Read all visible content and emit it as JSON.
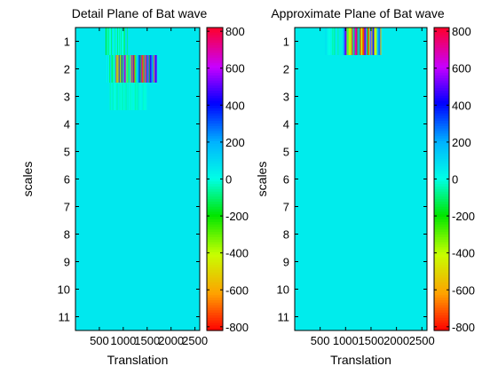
{
  "chart_data": [
    {
      "type": "heatmap",
      "title": "Detail Plane of Bat wave",
      "xlabel": "Translation",
      "ylabel": "scales",
      "xlim": [
        0,
        2600
      ],
      "ylim": [
        0.5,
        11.5
      ],
      "xticks": [
        500,
        1000,
        1500,
        2000,
        2500
      ],
      "xtick_labels": [
        "500",
        "1000",
        "1500",
        "2000",
        "2500"
      ],
      "yticks": [
        1,
        2,
        3,
        4,
        5,
        6,
        7,
        8,
        9,
        10,
        11
      ],
      "ytick_labels": [
        "1",
        "2",
        "3",
        "4",
        "5",
        "6",
        "7",
        "8",
        "9",
        "10",
        "11"
      ],
      "baseline_value": 60,
      "regions": [
        {
          "scale": 1,
          "x_start": 630,
          "x_end": 650,
          "amplitude": 300,
          "seed": 3
        },
        {
          "scale": 1,
          "x_start": 650,
          "x_end": 1100,
          "amplitude": 100,
          "seed": 7
        },
        {
          "scale": 2,
          "x_start": 830,
          "x_end": 1700,
          "amplitude": 820,
          "seed": 11
        },
        {
          "scale": 2,
          "x_start": 650,
          "x_end": 830,
          "amplitude": 120,
          "seed": 13
        },
        {
          "scale": 3,
          "x_start": 700,
          "x_end": 1500,
          "amplitude": 60,
          "seed": 17
        }
      ],
      "colorbar": {
        "min": -820,
        "max": 820,
        "ticks": [
          -800,
          -600,
          -400,
          -200,
          0,
          200,
          400,
          600,
          800
        ],
        "tick_labels": [
          "-800",
          "-600",
          "-400",
          "-200",
          "0",
          "200",
          "400",
          "600",
          "800"
        ]
      }
    },
    {
      "type": "heatmap",
      "title": "Approximate Plane of Bat wave",
      "xlabel": "Translation",
      "ylabel": "scales",
      "xlim": [
        0,
        2600
      ],
      "ylim": [
        0.5,
        11.5
      ],
      "xticks": [
        500,
        1000,
        1500,
        2000,
        2500
      ],
      "xtick_labels": [
        "500",
        "1000",
        "1500",
        "2000",
        "2500"
      ],
      "yticks": [
        1,
        2,
        3,
        4,
        5,
        6,
        7,
        8,
        9,
        10,
        11
      ],
      "ytick_labels": [
        "1",
        "2",
        "3",
        "4",
        "5",
        "6",
        "7",
        "8",
        "9",
        "10",
        "11"
      ],
      "baseline_value": 50,
      "regions": [
        {
          "scale": 1,
          "x_start": 950,
          "x_end": 1700,
          "amplitude": 820,
          "seed": 19
        },
        {
          "scale": 1,
          "x_start": 600,
          "x_end": 950,
          "amplitude": 90,
          "seed": 23
        }
      ],
      "colorbar": {
        "min": -820,
        "max": 820,
        "ticks": [
          -800,
          -600,
          -400,
          -200,
          0,
          200,
          400,
          600,
          800
        ],
        "tick_labels": [
          "-800",
          "-600",
          "-400",
          "-200",
          "0",
          "200",
          "400",
          "600",
          "800"
        ]
      }
    }
  ]
}
